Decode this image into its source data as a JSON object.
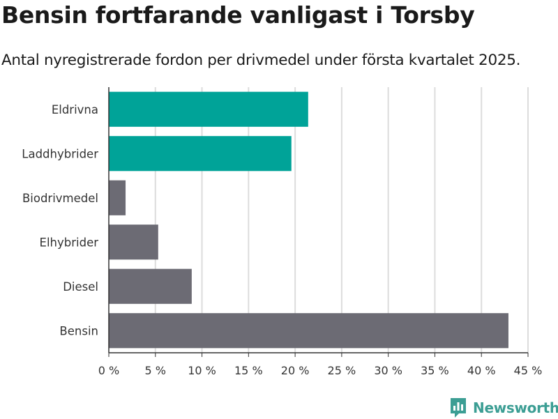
{
  "title": "Bensin fortfarande vanligast i Torsby",
  "subtitle": "Antal nyregistrerade fordon per drivmedel under första kvartalet 2025.",
  "brand": {
    "name": "Newsworthy"
  },
  "chart_data": {
    "type": "bar",
    "orientation": "horizontal",
    "title": "",
    "xlabel": "",
    "ylabel": "",
    "categories": [
      "Eldrivna",
      "Laddhybrider",
      "Biodrivmedel",
      "Elhybrider",
      "Diesel",
      "Bensin"
    ],
    "values": [
      21.4,
      19.6,
      1.8,
      5.3,
      8.9,
      42.9
    ],
    "colors": [
      "#00a398",
      "#00a398",
      "#6c6b74",
      "#6c6b74",
      "#6c6b74",
      "#6c6b74"
    ],
    "xlim": [
      0,
      45
    ],
    "xticks": [
      0,
      5,
      10,
      15,
      20,
      25,
      30,
      35,
      40,
      45
    ],
    "tick_suffix": " %",
    "grid": "vertical"
  }
}
